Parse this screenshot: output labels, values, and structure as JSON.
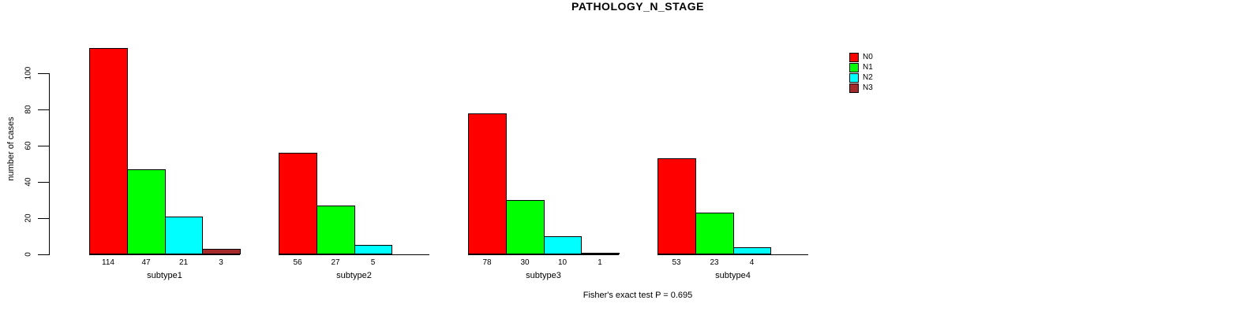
{
  "title": "PATHOLOGY_N_STAGE",
  "caption": "Fisher's exact test P = 0.695",
  "chart_data": {
    "type": "bar",
    "title": "PATHOLOGY_N_STAGE",
    "xlabel": "",
    "ylabel": "number of cases",
    "yticks": [
      0,
      20,
      40,
      60,
      80,
      100
    ],
    "ylim": [
      0,
      114
    ],
    "grid": false,
    "legend_position": "top-right",
    "bar_value_labels_shown": true,
    "categories": [
      "subtype1",
      "subtype2",
      "subtype3",
      "subtype4"
    ],
    "series": [
      {
        "name": "N0",
        "color": "#FF0000",
        "values": [
          114,
          56,
          78,
          53
        ]
      },
      {
        "name": "N1",
        "color": "#00FF00",
        "values": [
          47,
          27,
          30,
          23
        ]
      },
      {
        "name": "N2",
        "color": "#00FFFF",
        "values": [
          21,
          5,
          10,
          4
        ]
      },
      {
        "name": "N3",
        "color": "#A52A2A",
        "values": [
          3,
          0,
          1,
          0
        ]
      }
    ],
    "annotation": "Fisher's exact test P = 0.695"
  }
}
